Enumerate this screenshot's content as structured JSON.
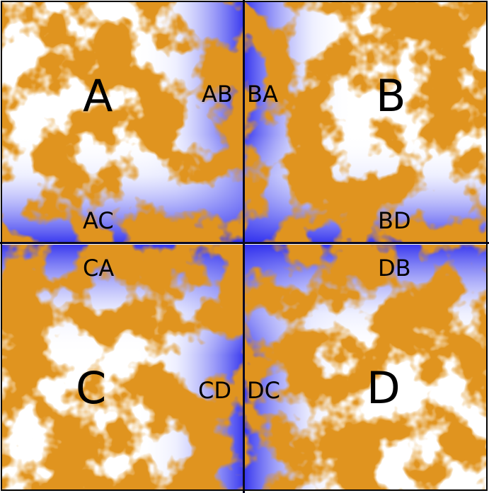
{
  "colors": {
    "orange": "#e0a020",
    "orange_dark": "#c8781c",
    "blue": "#3030ee",
    "blue_light": "#dde0ff",
    "line": "#0a0a24"
  },
  "regions": {
    "a": {
      "label": "A"
    },
    "b": {
      "label": "B"
    },
    "c": {
      "label": "C"
    },
    "d": {
      "label": "D"
    }
  },
  "boundaries": {
    "ab": "AB",
    "ba": "BA",
    "ac": "AC",
    "bd": "BD",
    "ca": "CA",
    "db": "DB",
    "cd": "CD",
    "dc": "DC"
  }
}
